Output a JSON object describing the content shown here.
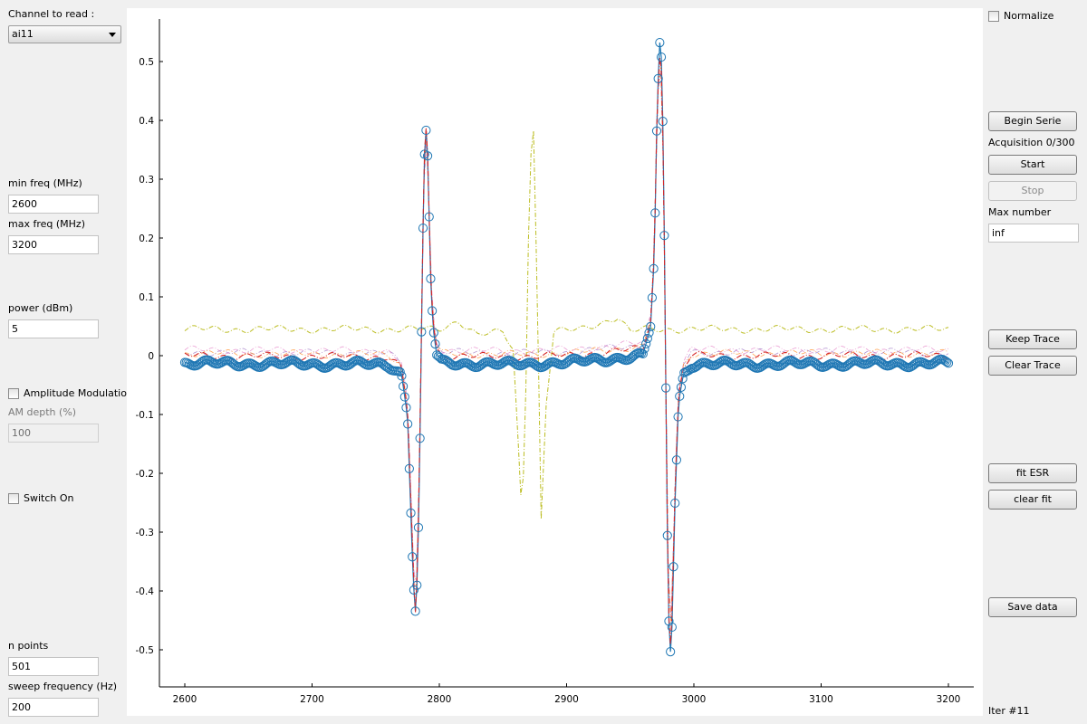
{
  "left_panel": {
    "channel_label": "Channel to read :",
    "channel_selected": "ai11",
    "min_freq_label": "min freq (MHz)",
    "min_freq_value": "2600",
    "max_freq_label": "max freq (MHz)",
    "max_freq_value": "3200",
    "power_label": "power (dBm)",
    "power_value": "5",
    "am_label": "Amplitude Modulation",
    "am_depth_label": "AM depth (%)",
    "am_depth_value": "100",
    "switch_label": "Switch On",
    "n_points_label": "n points",
    "n_points_value": "501",
    "sweep_label": "sweep frequency (Hz)",
    "sweep_value": "200"
  },
  "right_panel": {
    "normalize_label": "Normalize",
    "begin_serie": "Begin Serie",
    "acquisition_status": "Acquisition 0/300",
    "start": "Start",
    "stop": "Stop",
    "max_number_label": "Max number",
    "max_number_value": "inf",
    "keep_trace": "Keep Trace",
    "clear_trace": "Clear Trace",
    "fit_esr": "fit ESR",
    "clear_fit": "clear fit",
    "save_data": "Save data",
    "iter_label": "Iter #11"
  },
  "colors": {
    "measured": "#1f77b4",
    "fit": "#d62728",
    "kept_trace": "#bcbd22",
    "other_trace": "#9467bd"
  },
  "chart_data": {
    "type": "line",
    "title": "",
    "xlabel": "",
    "ylabel": "",
    "xlim": [
      2600,
      3200
    ],
    "ylim": [
      -0.55,
      0.55
    ],
    "xticks": [
      "2600",
      "2700",
      "2800",
      "2900",
      "3000",
      "3100",
      "3200"
    ],
    "yticks": [
      "0.5",
      "0.4",
      "0.3",
      "0.2",
      "0.1",
      "0",
      "-0.1",
      "-0.2",
      "-0.3",
      "-0.4",
      "-0.5"
    ],
    "series": [
      {
        "style": "circles + solid line",
        "color": "#1f77b4",
        "baseline": -0.013,
        "x": [
          2600,
          2760,
          2770,
          2775,
          2779,
          2781,
          2783,
          2785,
          2787,
          2789,
          2791,
          2793,
          2795,
          2798,
          2802,
          2850,
          2900,
          2960,
          2966,
          2969,
          2971,
          2973,
          2975,
          2977,
          2979,
          2981,
          2983,
          2985,
          2988,
          2992,
          2998,
          3200
        ],
        "y": [
          -0.013,
          -0.015,
          -0.03,
          -0.1,
          -0.35,
          -0.44,
          -0.37,
          -0.12,
          0.19,
          0.4,
          0.33,
          0.14,
          0.05,
          0.0,
          -0.012,
          -0.015,
          -0.012,
          0.0,
          0.05,
          0.17,
          0.4,
          0.53,
          0.49,
          0.17,
          -0.28,
          -0.52,
          -0.45,
          -0.26,
          -0.08,
          -0.03,
          -0.015,
          -0.013
        ]
      },
      {
        "style": "dash-dot",
        "color": "#d62728",
        "x": [
          2600,
          2760,
          2770,
          2775,
          2779,
          2781,
          2783,
          2785,
          2787,
          2789,
          2791,
          2793,
          2795,
          2798,
          2802,
          2850,
          2900,
          2960,
          2966,
          2969,
          2971,
          2973,
          2975,
          2977,
          2979,
          2981,
          2983,
          2985,
          2988,
          2992,
          2998,
          3200
        ],
        "y": [
          0.0,
          -0.002,
          -0.02,
          -0.09,
          -0.33,
          -0.45,
          -0.36,
          -0.1,
          0.2,
          0.41,
          0.34,
          0.15,
          0.06,
          0.012,
          0.0,
          -0.002,
          0.0,
          0.012,
          0.06,
          0.18,
          0.41,
          0.51,
          0.48,
          0.16,
          -0.27,
          -0.51,
          -0.43,
          -0.24,
          -0.07,
          -0.02,
          0.0,
          0.0
        ]
      },
      {
        "style": "dash-dot",
        "color": "#bcbd22",
        "x": [
          2600,
          2780,
          2800,
          2815,
          2830,
          2850,
          2858,
          2862,
          2865,
          2868,
          2871,
          2874,
          2877,
          2880,
          2884,
          2890,
          2910,
          2940,
          2950,
          2960,
          3200
        ],
        "y": [
          0.045,
          0.045,
          0.045,
          0.06,
          0.035,
          0.04,
          0.01,
          -0.15,
          -0.28,
          -0.05,
          0.33,
          0.385,
          0.1,
          -0.28,
          -0.08,
          0.04,
          0.045,
          0.065,
          0.04,
          0.045,
          0.045
        ]
      }
    ]
  }
}
